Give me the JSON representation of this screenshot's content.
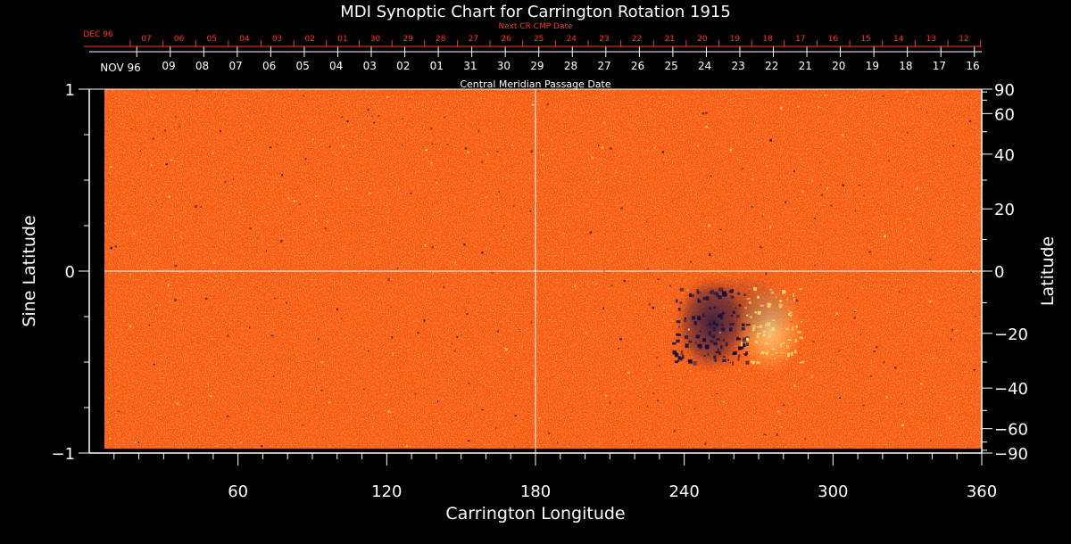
{
  "chart_data": {
    "type": "heatmap",
    "title": "MDI Synoptic Chart for Carrington Rotation 1915",
    "xlabel": "Carrington Longitude",
    "ylabel_left": "Sine Latitude",
    "ylabel_right": "Latitude",
    "xlim": [
      0,
      360
    ],
    "ylim": [
      -1,
      1
    ],
    "x_ticks": [
      60,
      120,
      180,
      240,
      300,
      360
    ],
    "y_ticks_left": [
      1,
      0,
      -1
    ],
    "y_ticks_right": [
      90,
      60,
      40,
      20,
      0,
      -20,
      -40,
      -60,
      -90
    ],
    "y_tick_labels_left": [
      "1",
      "0",
      "−1"
    ],
    "y_tick_labels_right": [
      "90",
      "60",
      "40",
      "20",
      "0",
      "−20",
      "−40",
      "−60",
      "−90"
    ],
    "grid_lines": {
      "x": [
        180
      ],
      "y": [
        0
      ]
    },
    "top_axis_label": "Central Meridian Passage Date",
    "cmp_dates": {
      "month_label": "NOV 96",
      "days": [
        "09",
        "08",
        "07",
        "06",
        "05",
        "04",
        "03",
        "02",
        "01",
        "31",
        "30",
        "29",
        "28",
        "27",
        "26",
        "25",
        "24",
        "23",
        "22",
        "21",
        "20",
        "19",
        "18",
        "17",
        "16"
      ]
    },
    "next_cr_dates": {
      "label": "Next CR CMP Date",
      "month_label": "DEC 96",
      "days": [
        "07",
        "06",
        "05",
        "04",
        "03",
        "02",
        "01",
        "30",
        "29",
        "28",
        "27",
        "26",
        "25",
        "24",
        "23",
        "22",
        "21",
        "20",
        "19",
        "18",
        "17",
        "16",
        "15",
        "14",
        "13",
        "12"
      ]
    },
    "colors": {
      "background_field": "#ff5a10",
      "positive_polarity": "#ffe070",
      "negative_polarity": "#101040",
      "secondary_axis": "#ff3a1a",
      "axes": "#ffffff"
    },
    "active_region": {
      "longitude_range": [
        235,
        285
      ],
      "latitude_range": [
        -30,
        -5
      ]
    }
  }
}
